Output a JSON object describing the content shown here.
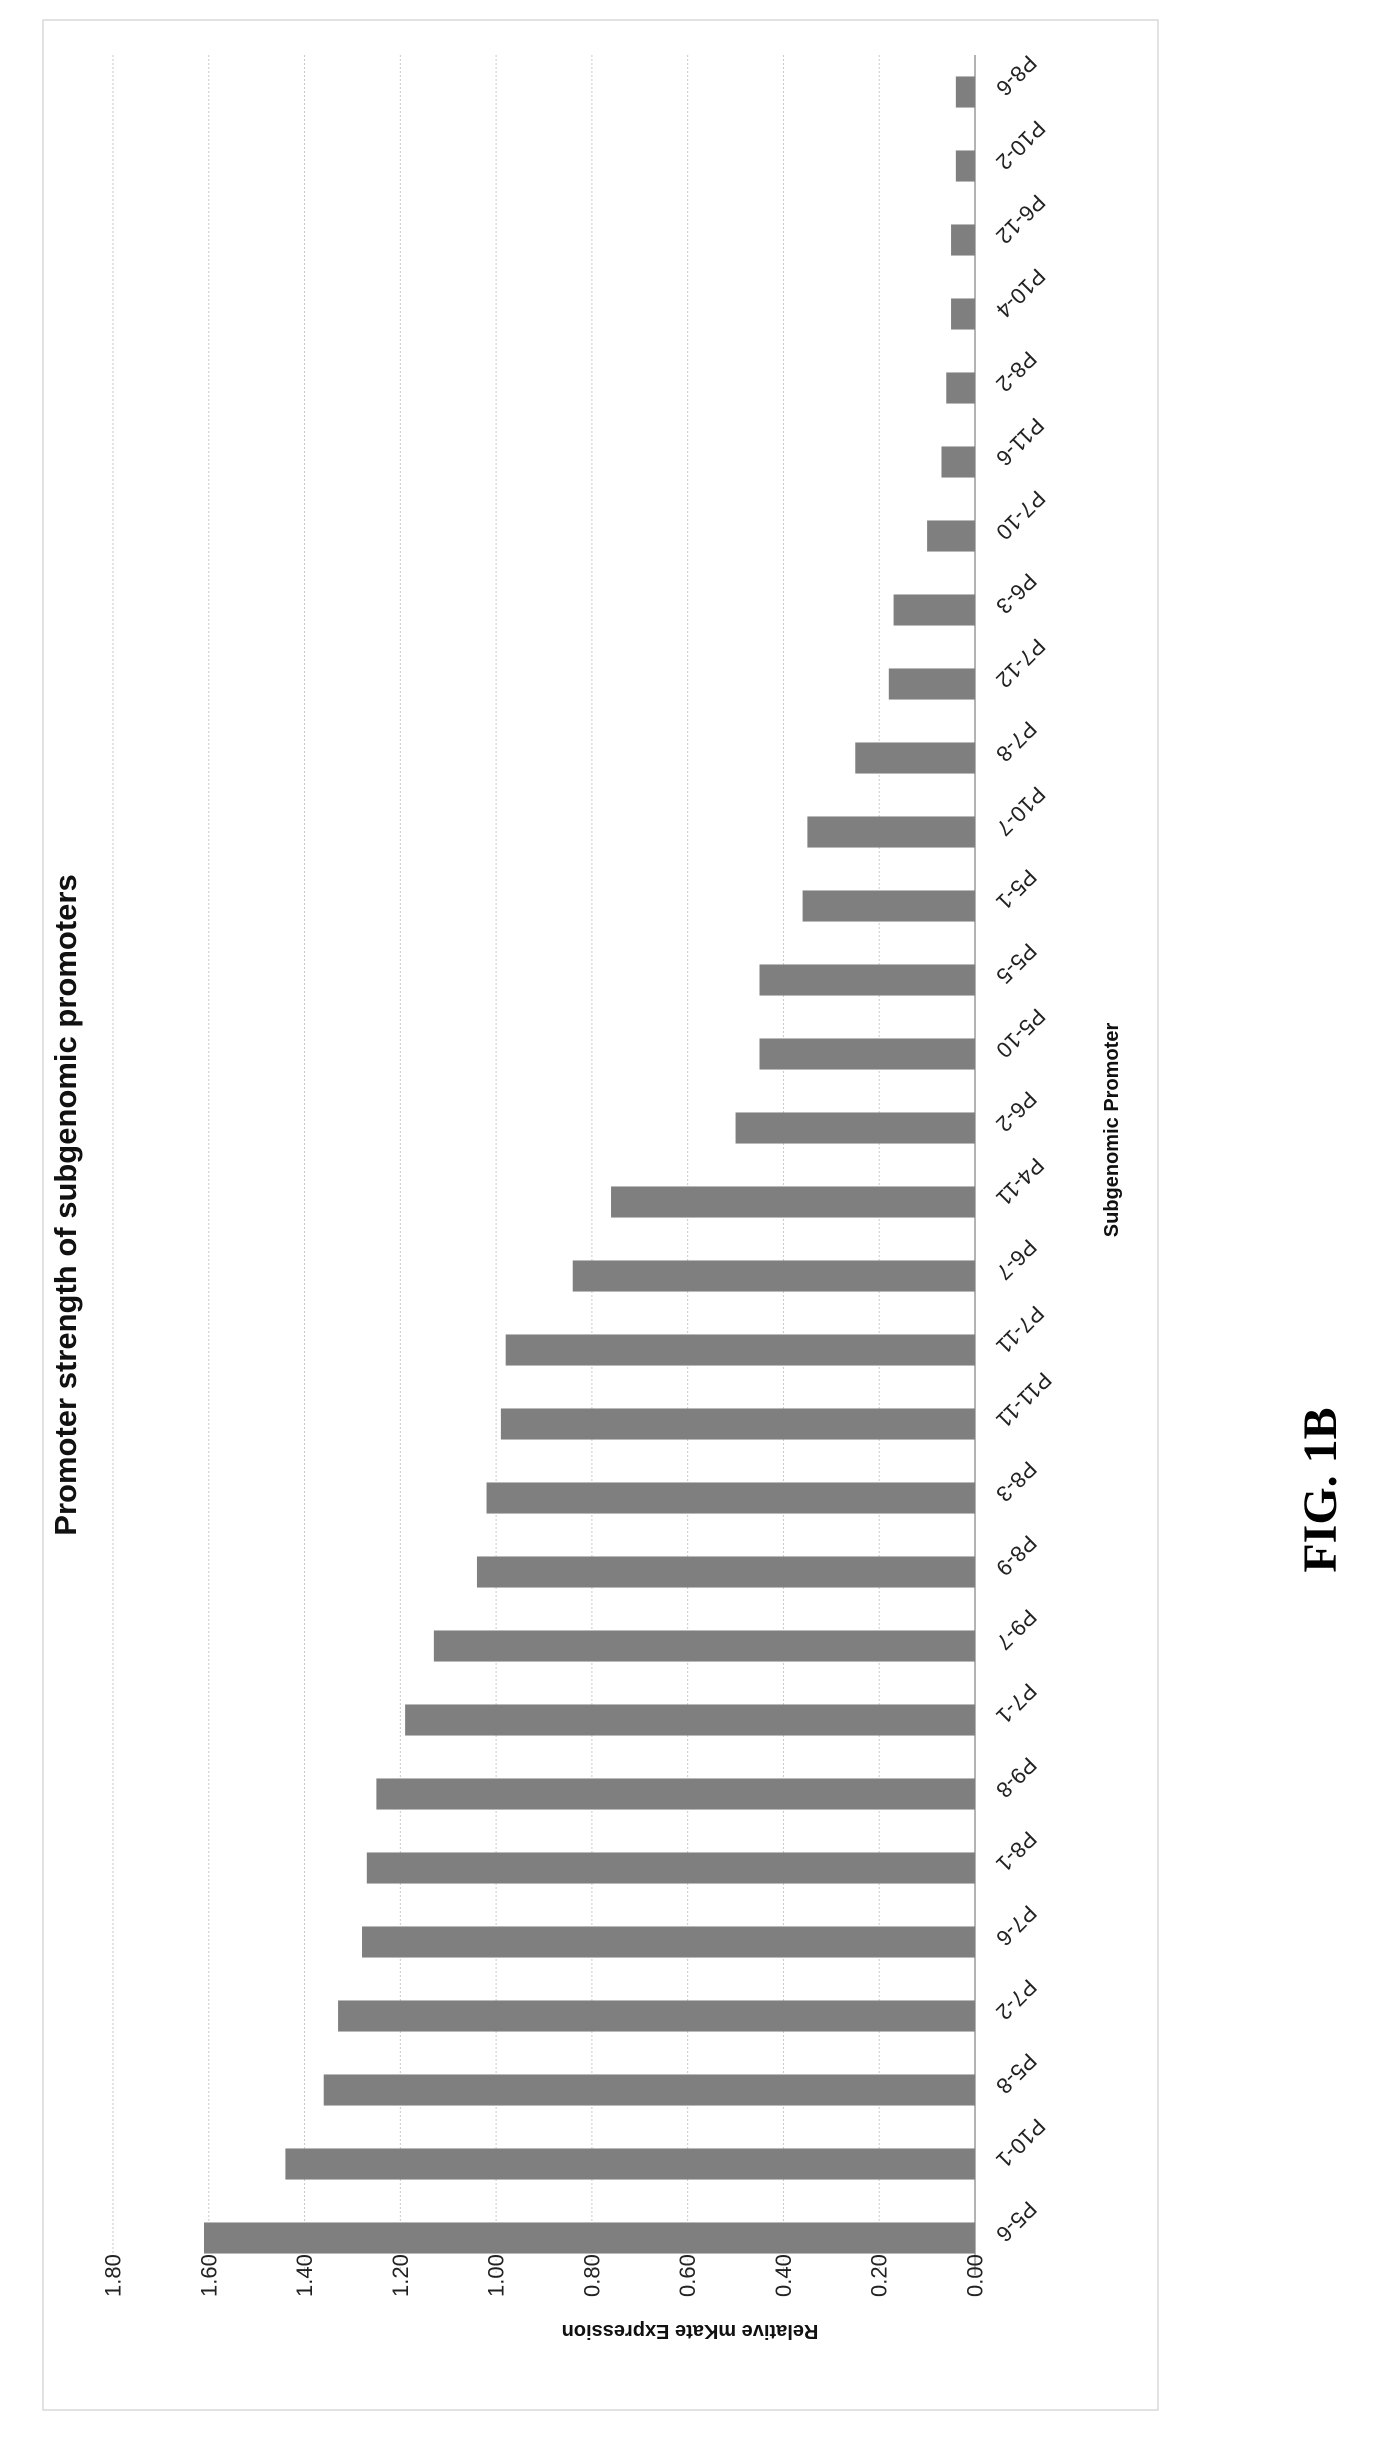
{
  "figure_caption": "FIG. 1B",
  "chart_data": {
    "type": "bar",
    "title": "Promoter strength of subgenomic promoters",
    "xlabel": "Subgenomic Promoter",
    "ylabel": "Relative mKate Expression",
    "ylim": [
      0,
      1.8
    ],
    "yticks": [
      "0.00",
      "0.20",
      "0.40",
      "0.60",
      "0.80",
      "1.00",
      "1.20",
      "1.40",
      "1.60",
      "1.80"
    ],
    "grid": true,
    "orientation": "figure rotated 90 degrees",
    "categories": [
      "P5-6",
      "P10-1",
      "P5-8",
      "P7-2",
      "P7-6",
      "P8-1",
      "P9-8",
      "P7-1",
      "P9-7",
      "P8-9",
      "P8-3",
      "P11-11",
      "P7-11",
      "P6-7",
      "P4-11",
      "P6-2",
      "P5-10",
      "P5-5",
      "P5-1",
      "P10-7",
      "P7-8",
      "P7-12",
      "P6-3",
      "P7-10",
      "P11-6",
      "P8-2",
      "P10-4",
      "P6-12",
      "P10-2",
      "P8-6"
    ],
    "values": [
      1.61,
      1.44,
      1.36,
      1.33,
      1.28,
      1.27,
      1.25,
      1.19,
      1.13,
      1.04,
      1.02,
      0.99,
      0.98,
      0.84,
      0.76,
      0.5,
      0.45,
      0.45,
      0.36,
      0.35,
      0.25,
      0.18,
      0.17,
      0.1,
      0.07,
      0.06,
      0.05,
      0.05,
      0.04,
      0.04
    ],
    "bar_color": "#7f7f7f"
  }
}
